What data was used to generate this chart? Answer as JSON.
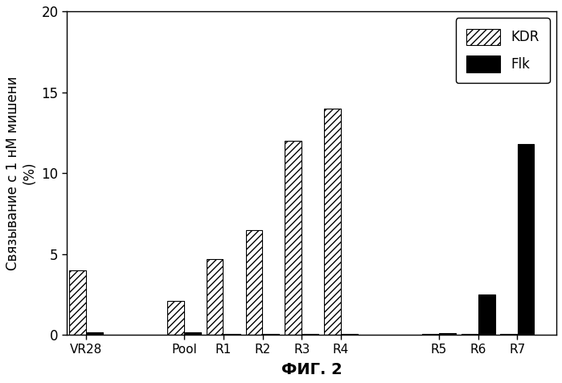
{
  "groups": [
    "VR28",
    "Pool",
    "R1",
    "R2",
    "R3",
    "R4",
    "R5",
    "R6",
    "R7"
  ],
  "kdr_values": [
    4.0,
    2.1,
    4.7,
    6.5,
    12.0,
    14.0,
    0.05,
    0.05,
    0.05
  ],
  "flk_values": [
    0.15,
    0.15,
    0.05,
    0.05,
    0.05,
    0.05,
    0.1,
    2.5,
    11.8
  ],
  "ylim": [
    0,
    20
  ],
  "yticks": [
    0,
    5,
    10,
    15,
    20
  ],
  "ylabel": "Связывание с 1 нМ мишени\n(%)",
  "xlabel": "ФИГ. 2",
  "legend_kdr": "KDR",
  "legend_flk": "Flk",
  "bar_width": 0.42,
  "hatch_pattern": "////",
  "kdr_facecolor": "white",
  "kdr_edgecolor": "black",
  "flk_facecolor": "black",
  "flk_edgecolor": "black",
  "background_color": "white",
  "figure_width": 6.99,
  "figure_height": 4.76,
  "dpi": 100
}
